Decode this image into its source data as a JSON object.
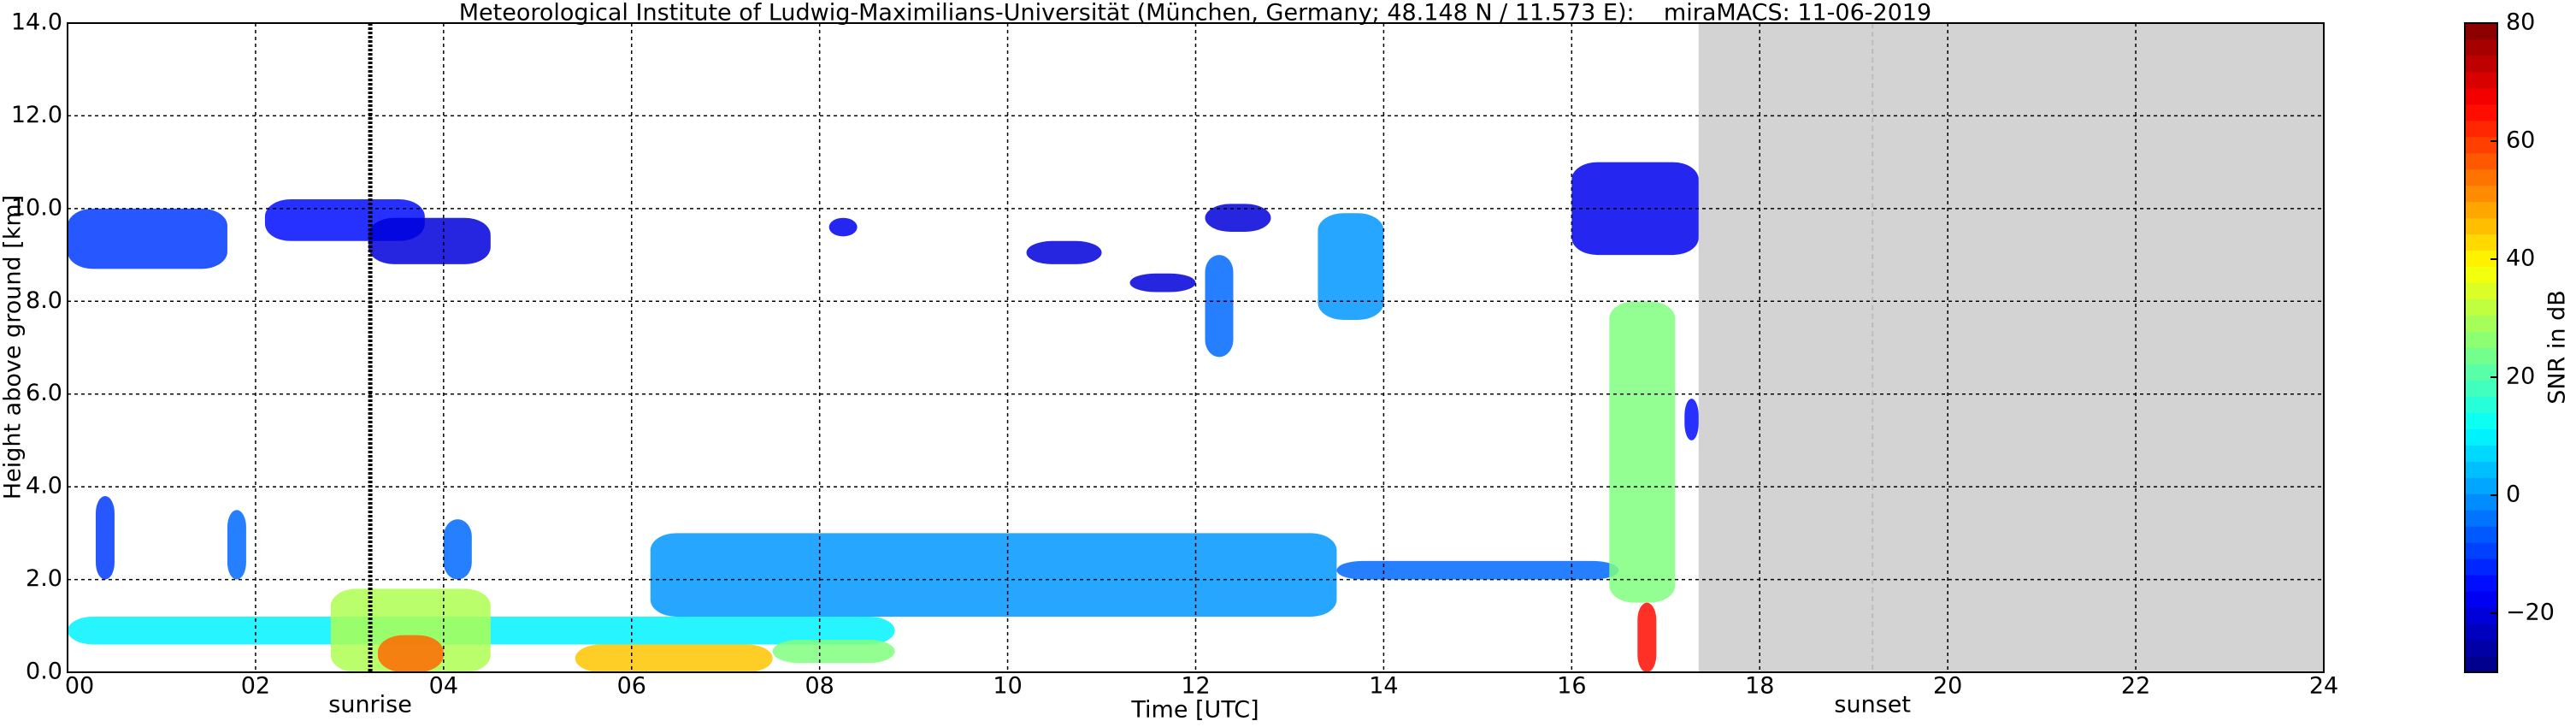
{
  "chart_data": {
    "type": "time-height",
    "title": "Meteorological Institute of Ludwig-Maximilians-Universität (München, Germany; 48.148 N / 11.573 E):    miraMACS: 11-06-2019",
    "x_label": "Time [UTC]",
    "y_label": "Height above ground [km]",
    "colorbar_label": "SNR in dB",
    "colormap": "jet",
    "grid": true,
    "xlim": [
      0,
      24
    ],
    "xticks": [
      {
        "value": 0,
        "label": "00"
      },
      {
        "value": 2,
        "label": "02"
      },
      {
        "value": 4,
        "label": "04"
      },
      {
        "value": 6,
        "label": "06"
      },
      {
        "value": 8,
        "label": "08"
      },
      {
        "value": 10,
        "label": "10"
      },
      {
        "value": 12,
        "label": "12"
      },
      {
        "value": 14,
        "label": "14"
      },
      {
        "value": 16,
        "label": "16"
      },
      {
        "value": 18,
        "label": "18"
      },
      {
        "value": 20,
        "label": "20"
      },
      {
        "value": 22,
        "label": "22"
      },
      {
        "value": 24,
        "label": "24"
      }
    ],
    "ylim": [
      0,
      14
    ],
    "yticks": [
      {
        "value": 0,
        "label": "0.0"
      },
      {
        "value": 2,
        "label": "2.0"
      },
      {
        "value": 4,
        "label": "4.0"
      },
      {
        "value": 6,
        "label": "6.0"
      },
      {
        "value": 8,
        "label": "8.0"
      },
      {
        "value": 10,
        "label": "10.0"
      },
      {
        "value": 12,
        "label": "12.0"
      },
      {
        "value": 14,
        "label": "14.0"
      }
    ],
    "clim": [
      -30,
      80
    ],
    "cticks": [
      {
        "value": -20,
        "label": "−20"
      },
      0,
      20,
      40,
      60,
      80
    ],
    "no_data": {
      "x": [
        17.35,
        24
      ],
      "color": "#d3d3d3"
    },
    "annotations": [
      {
        "text": "sunrise",
        "x": 3.22,
        "color": "#000000"
      },
      {
        "text": "sunset",
        "x": 19.2,
        "color": "#bbbbbb"
      }
    ],
    "echoes": [
      {
        "x": [
          0,
          1.7
        ],
        "y": [
          8.7,
          10.0
        ],
        "snr": -10
      },
      {
        "x": [
          2.1,
          3.8
        ],
        "y": [
          9.3,
          10.2
        ],
        "snr": -15
      },
      {
        "x": [
          3.2,
          4.5
        ],
        "y": [
          8.8,
          9.8
        ],
        "snr": -20
      },
      {
        "x": [
          8.1,
          8.4
        ],
        "y": [
          9.4,
          9.8
        ],
        "snr": -18
      },
      {
        "x": [
          10.2,
          11.0
        ],
        "y": [
          8.8,
          9.3
        ],
        "snr": -20
      },
      {
        "x": [
          11.3,
          12.0
        ],
        "y": [
          8.2,
          8.6
        ],
        "snr": -20
      },
      {
        "x": [
          12.1,
          12.4
        ],
        "y": [
          6.8,
          9.0
        ],
        "snr": -5
      },
      {
        "x": [
          12.1,
          12.8
        ],
        "y": [
          9.5,
          10.1
        ],
        "snr": -20
      },
      {
        "x": [
          13.3,
          14.0
        ],
        "y": [
          7.6,
          9.9
        ],
        "snr": 0
      },
      {
        "x": [
          16.0,
          17.35
        ],
        "y": [
          9.0,
          11.0
        ],
        "snr": -18
      },
      {
        "x": [
          6.2,
          13.5
        ],
        "y": [
          1.2,
          3.0
        ],
        "snr": 0
      },
      {
        "x": [
          13.5,
          16.5
        ],
        "y": [
          2.0,
          2.4
        ],
        "snr": -5
      },
      {
        "x": [
          0,
          8.8
        ],
        "y": [
          0.6,
          1.2
        ],
        "snr": 10
      },
      {
        "x": [
          2.8,
          4.5
        ],
        "y": [
          0,
          1.8
        ],
        "snr": 30
      },
      {
        "x": [
          3.3,
          4.0
        ],
        "y": [
          0,
          0.8
        ],
        "snr": 55
      },
      {
        "x": [
          5.4,
          7.5
        ],
        "y": [
          0,
          0.6
        ],
        "snr": 45
      },
      {
        "x": [
          7.5,
          8.8
        ],
        "y": [
          0.2,
          0.7
        ],
        "snr": 25
      },
      {
        "x": [
          0.3,
          0.5
        ],
        "y": [
          2.0,
          3.8
        ],
        "snr": -10
      },
      {
        "x": [
          1.7,
          1.9
        ],
        "y": [
          2.0,
          3.5
        ],
        "snr": -5
      },
      {
        "x": [
          4.0,
          4.3
        ],
        "y": [
          2.0,
          3.3
        ],
        "snr": -5
      },
      {
        "x": [
          16.4,
          17.1
        ],
        "y": [
          1.5,
          8.0
        ],
        "snr": 25
      },
      {
        "x": [
          17.2,
          17.35
        ],
        "y": [
          5.0,
          5.9
        ],
        "snr": -15
      },
      {
        "x": [
          16.7,
          16.9
        ],
        "y": [
          0,
          1.5
        ],
        "snr": 65
      }
    ]
  }
}
